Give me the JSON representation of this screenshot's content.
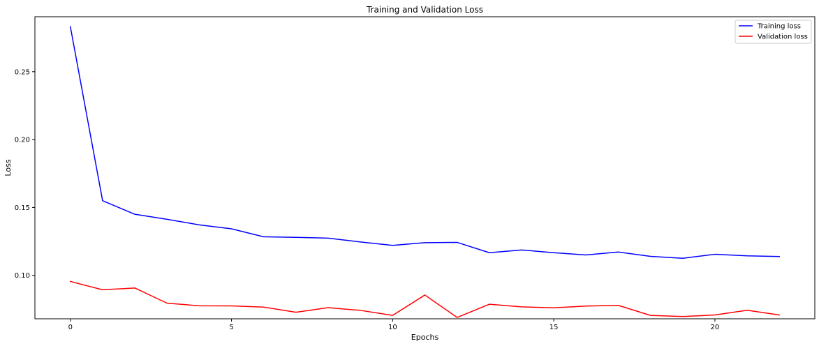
{
  "chart_data": {
    "type": "line",
    "title": "Training and Validation Loss",
    "xlabel": "Epochs",
    "ylabel": "Loss",
    "xlim": [
      -1.1,
      23.1
    ],
    "ylim": [
      0.068,
      0.2905
    ],
    "x_ticks": [
      0,
      5,
      10,
      15,
      20
    ],
    "x_tick_labels": [
      "0",
      "5",
      "10",
      "15",
      "20"
    ],
    "y_ticks": [
      0.1,
      0.15,
      0.2,
      0.25
    ],
    "y_tick_labels": [
      "0.10",
      "0.15",
      "0.20",
      "0.25"
    ],
    "grid": false,
    "legend_position": "top-right",
    "x": [
      0,
      1,
      2,
      3,
      4,
      5,
      6,
      7,
      8,
      9,
      10,
      11,
      12,
      13,
      14,
      15,
      16,
      17,
      18,
      19,
      20,
      21,
      22
    ],
    "series": [
      {
        "name": "Training loss",
        "color": "#0000ff",
        "values": [
          0.2832,
          0.155,
          0.145,
          0.1413,
          0.1372,
          0.1343,
          0.1284,
          0.128,
          0.1274,
          0.1246,
          0.1221,
          0.1241,
          0.1243,
          0.1167,
          0.1187,
          0.1167,
          0.115,
          0.1172,
          0.114,
          0.1126,
          0.1155,
          0.1144,
          0.1139
        ]
      },
      {
        "name": "Validation loss",
        "color": "#ff0000",
        "values": [
          0.0955,
          0.0894,
          0.0907,
          0.0795,
          0.0776,
          0.0775,
          0.0766,
          0.0728,
          0.0762,
          0.0742,
          0.0705,
          0.0855,
          0.069,
          0.0787,
          0.0768,
          0.0761,
          0.0774,
          0.0779,
          0.0705,
          0.0697,
          0.0708,
          0.0743,
          0.0708
        ]
      }
    ]
  }
}
